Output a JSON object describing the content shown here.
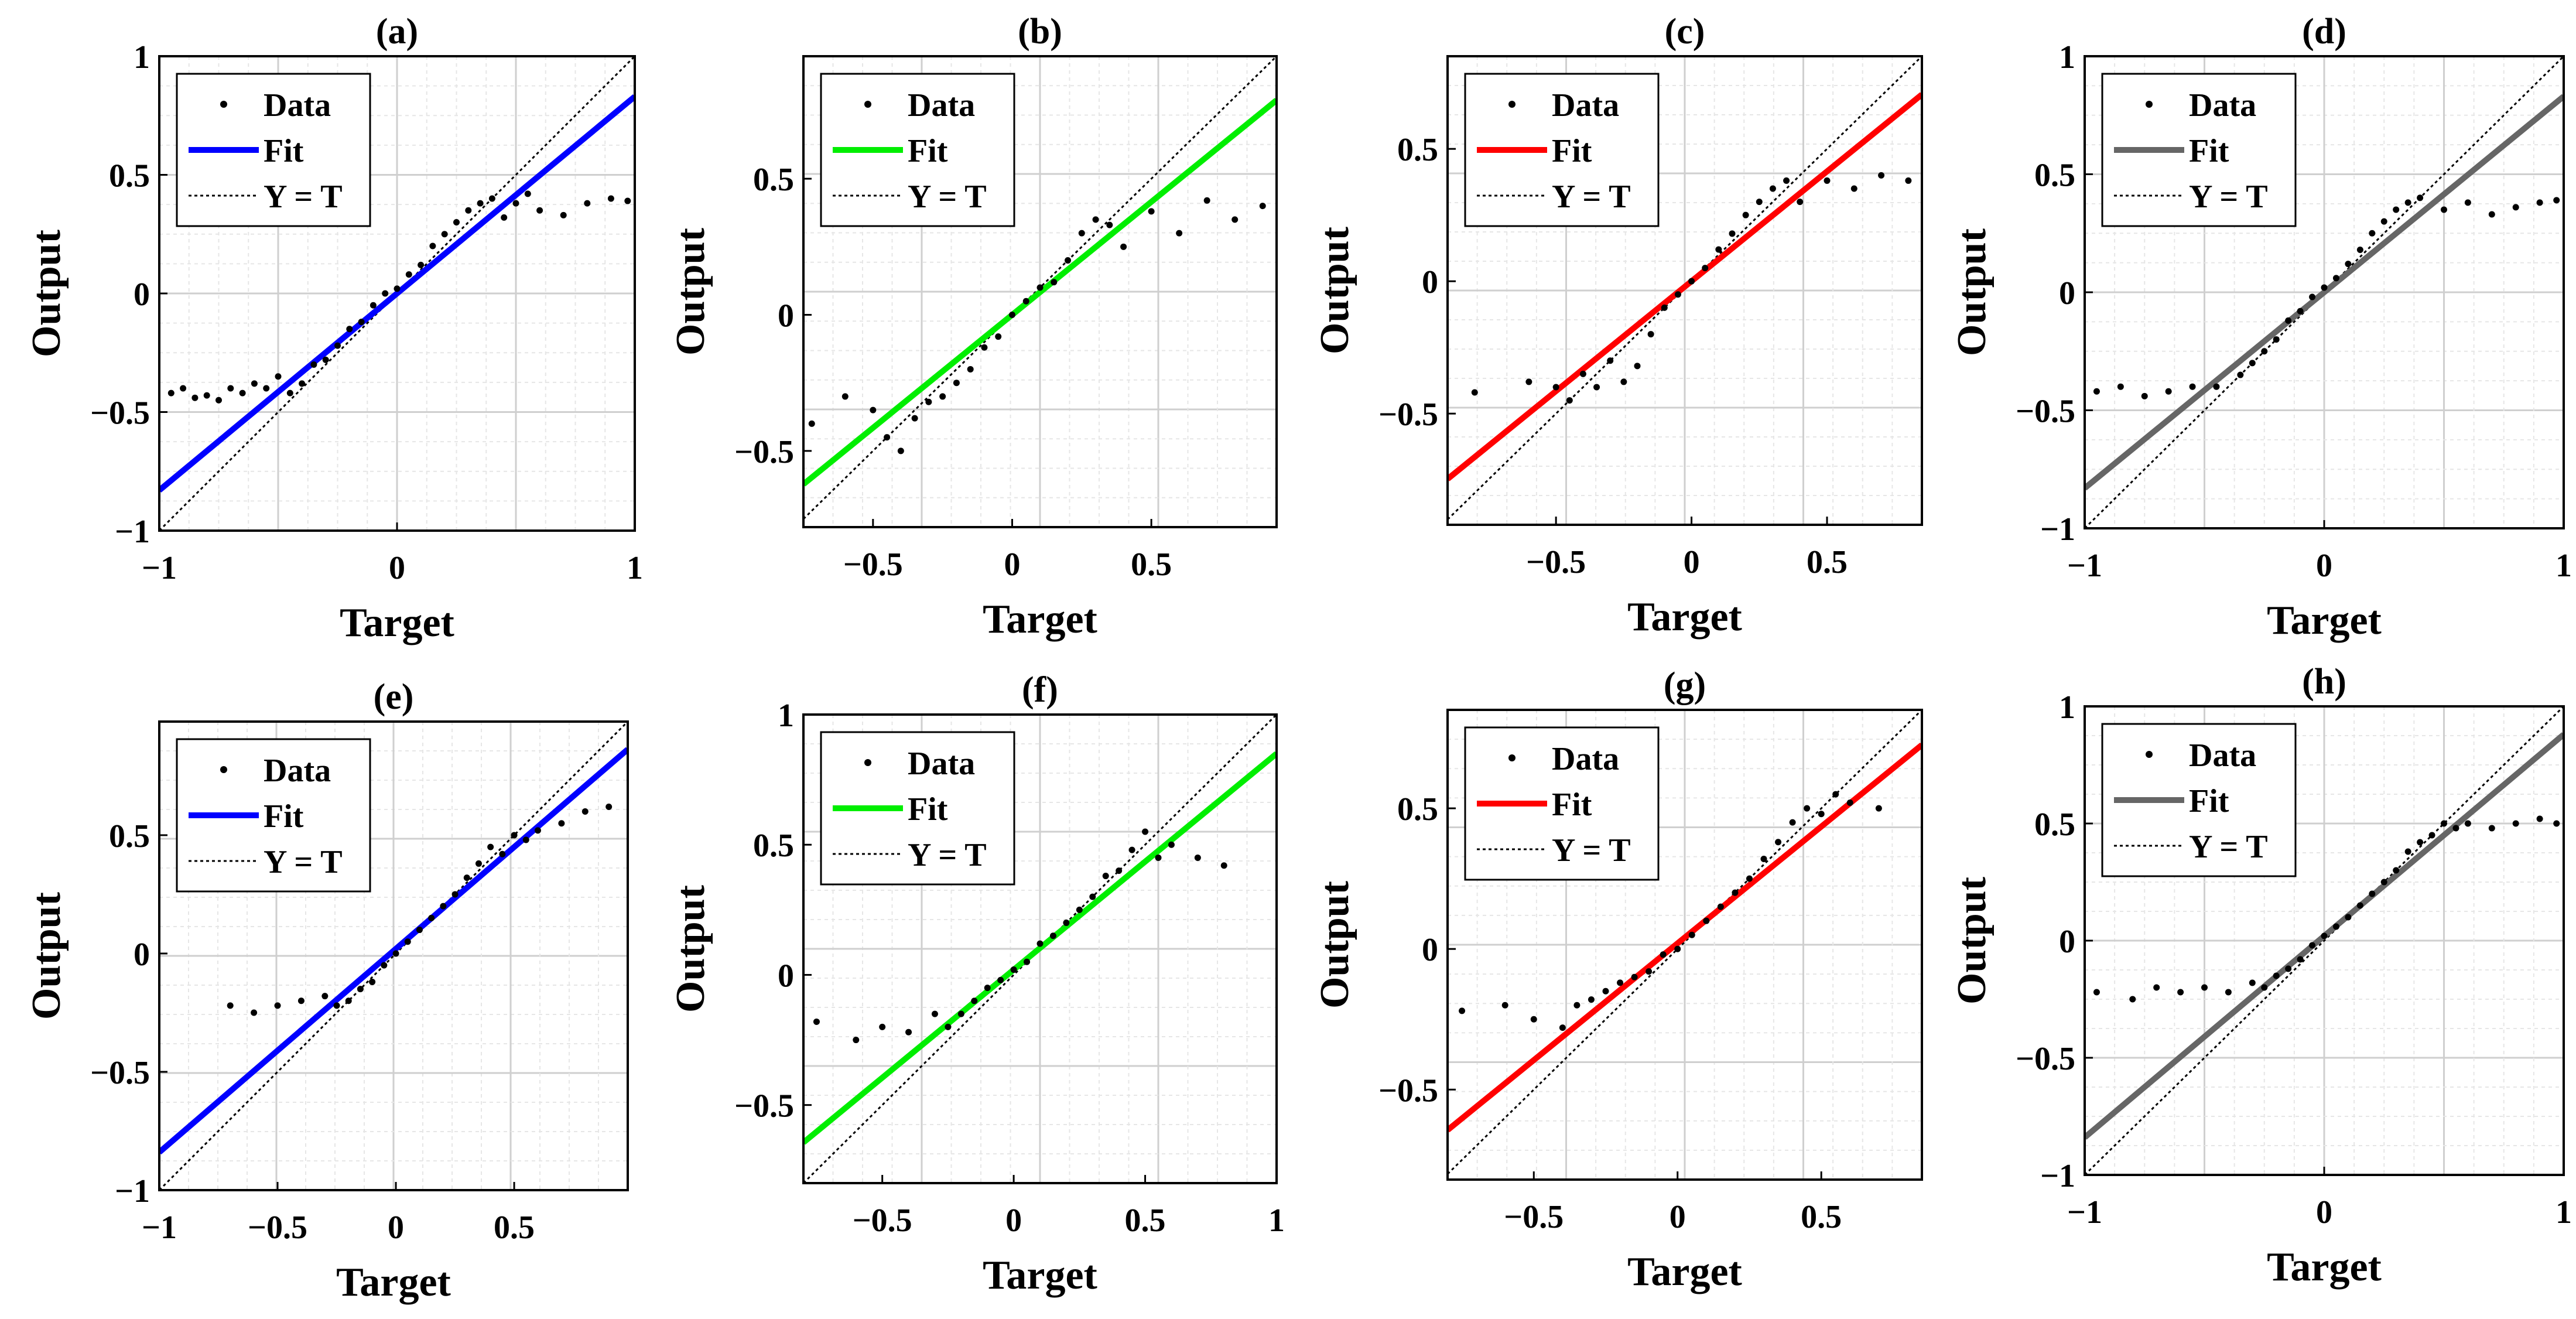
{
  "figure": {
    "xlabel": "Target",
    "ylabel": "Output"
  },
  "legend_labels": {
    "data": "Data",
    "fit": "Fit",
    "identity": "Y = T"
  },
  "chart_data": [
    {
      "type": "scatter",
      "title": "(a)",
      "xlabel": "Target",
      "ylabel": "Output",
      "xlim": [
        -1,
        1
      ],
      "ylim": [
        -1,
        1
      ],
      "xticks": [
        -1,
        0,
        1
      ],
      "xtick_labels": [
        "−1",
        "0",
        "1"
      ],
      "yticks": [
        -1,
        -0.5,
        0,
        0.5,
        1
      ],
      "ytick_labels": [
        "−1",
        "−0.5",
        "0",
        "0.5",
        "1"
      ],
      "fit": {
        "slope": 0.83,
        "intercept": 0.0,
        "color": "#0000ff"
      },
      "grid": true,
      "legend": "top-left",
      "points": [
        [
          -0.95,
          -0.42
        ],
        [
          -0.9,
          -0.4
        ],
        [
          -0.85,
          -0.44
        ],
        [
          -0.8,
          -0.43
        ],
        [
          -0.75,
          -0.45
        ],
        [
          -0.7,
          -0.4
        ],
        [
          -0.65,
          -0.42
        ],
        [
          -0.6,
          -0.38
        ],
        [
          -0.55,
          -0.4
        ],
        [
          -0.5,
          -0.35
        ],
        [
          -0.45,
          -0.42
        ],
        [
          -0.4,
          -0.38
        ],
        [
          -0.35,
          -0.3
        ],
        [
          -0.3,
          -0.28
        ],
        [
          -0.25,
          -0.22
        ],
        [
          -0.2,
          -0.15
        ],
        [
          -0.15,
          -0.12
        ],
        [
          -0.1,
          -0.05
        ],
        [
          -0.05,
          0.0
        ],
        [
          0.0,
          0.02
        ],
        [
          0.05,
          0.08
        ],
        [
          0.1,
          0.12
        ],
        [
          0.15,
          0.2
        ],
        [
          0.2,
          0.25
        ],
        [
          0.25,
          0.3
        ],
        [
          0.3,
          0.35
        ],
        [
          0.35,
          0.38
        ],
        [
          0.4,
          0.4
        ],
        [
          0.45,
          0.32
        ],
        [
          0.5,
          0.38
        ],
        [
          0.55,
          0.42
        ],
        [
          0.6,
          0.35
        ],
        [
          0.7,
          0.33
        ],
        [
          0.8,
          0.38
        ],
        [
          0.9,
          0.4
        ],
        [
          0.97,
          0.39
        ]
      ]
    },
    {
      "type": "scatter",
      "title": "(b)",
      "xlabel": "Target",
      "ylabel": "Output",
      "xlim": [
        -0.75,
        0.95
      ],
      "ylim": [
        -0.78,
        0.95
      ],
      "xticks": [
        -0.5,
        0,
        0.5
      ],
      "xtick_labels": [
        "−0.5",
        "0",
        "0.5"
      ],
      "yticks": [
        -0.5,
        0,
        0.5
      ],
      "ytick_labels": [
        "−0.5",
        "0",
        "0.5"
      ],
      "fit": {
        "slope": 0.83,
        "intercept": 0.0,
        "color": "#00ee00"
      },
      "grid": true,
      "legend": "top-left",
      "points": [
        [
          -0.72,
          -0.4
        ],
        [
          -0.6,
          -0.3
        ],
        [
          -0.5,
          -0.35
        ],
        [
          -0.45,
          -0.45
        ],
        [
          -0.4,
          -0.5
        ],
        [
          -0.35,
          -0.38
        ],
        [
          -0.3,
          -0.32
        ],
        [
          -0.25,
          -0.3
        ],
        [
          -0.2,
          -0.25
        ],
        [
          -0.15,
          -0.2
        ],
        [
          -0.1,
          -0.12
        ],
        [
          -0.05,
          -0.08
        ],
        [
          0.0,
          0.0
        ],
        [
          0.05,
          0.05
        ],
        [
          0.1,
          0.1
        ],
        [
          0.15,
          0.12
        ],
        [
          0.2,
          0.2
        ],
        [
          0.25,
          0.3
        ],
        [
          0.3,
          0.35
        ],
        [
          0.35,
          0.33
        ],
        [
          0.4,
          0.25
        ],
        [
          0.5,
          0.38
        ],
        [
          0.6,
          0.3
        ],
        [
          0.7,
          0.42
        ],
        [
          0.8,
          0.35
        ],
        [
          0.9,
          0.4
        ]
      ]
    },
    {
      "type": "scatter",
      "title": "(c)",
      "xlabel": "Target",
      "ylabel": "Output",
      "xlim": [
        -0.9,
        0.85
      ],
      "ylim": [
        -0.92,
        0.85
      ],
      "xticks": [
        -0.5,
        0,
        0.5
      ],
      "xtick_labels": [
        "−0.5",
        "0",
        "0.5"
      ],
      "yticks": [
        -0.5,
        0,
        0.5
      ],
      "ytick_labels": [
        "−0.5",
        "0",
        "0.5"
      ],
      "fit": {
        "slope": 0.83,
        "intercept": 0.0,
        "color": "#ff0000"
      },
      "grid": true,
      "legend": "top-left",
      "points": [
        [
          -0.8,
          -0.42
        ],
        [
          -0.6,
          -0.38
        ],
        [
          -0.5,
          -0.4
        ],
        [
          -0.45,
          -0.45
        ],
        [
          -0.4,
          -0.35
        ],
        [
          -0.35,
          -0.4
        ],
        [
          -0.3,
          -0.3
        ],
        [
          -0.25,
          -0.38
        ],
        [
          -0.2,
          -0.32
        ],
        [
          -0.15,
          -0.2
        ],
        [
          -0.1,
          -0.1
        ],
        [
          -0.05,
          -0.05
        ],
        [
          0.0,
          0.0
        ],
        [
          0.05,
          0.05
        ],
        [
          0.1,
          0.12
        ],
        [
          0.15,
          0.18
        ],
        [
          0.2,
          0.25
        ],
        [
          0.25,
          0.3
        ],
        [
          0.3,
          0.35
        ],
        [
          0.35,
          0.38
        ],
        [
          0.4,
          0.3
        ],
        [
          0.5,
          0.38
        ],
        [
          0.6,
          0.35
        ],
        [
          0.7,
          0.4
        ],
        [
          0.8,
          0.38
        ]
      ]
    },
    {
      "type": "scatter",
      "title": "(d)",
      "xlabel": "Target",
      "ylabel": "Output",
      "xlim": [
        -1,
        1
      ],
      "ylim": [
        -1,
        1
      ],
      "xticks": [
        -1,
        0,
        1
      ],
      "xtick_labels": [
        "−1",
        "0",
        "1"
      ],
      "yticks": [
        -1,
        -0.5,
        0,
        0.5,
        1
      ],
      "ytick_labels": [
        "−1",
        "−0.5",
        "0",
        "0.5",
        "1"
      ],
      "fit": {
        "slope": 0.83,
        "intercept": 0.0,
        "color": "#666666"
      },
      "grid": true,
      "legend": "top-left",
      "points": [
        [
          -0.95,
          -0.42
        ],
        [
          -0.85,
          -0.4
        ],
        [
          -0.75,
          -0.44
        ],
        [
          -0.65,
          -0.42
        ],
        [
          -0.55,
          -0.4
        ],
        [
          -0.45,
          -0.4
        ],
        [
          -0.35,
          -0.35
        ],
        [
          -0.3,
          -0.3
        ],
        [
          -0.25,
          -0.25
        ],
        [
          -0.2,
          -0.2
        ],
        [
          -0.15,
          -0.12
        ],
        [
          -0.1,
          -0.08
        ],
        [
          -0.05,
          -0.02
        ],
        [
          0.0,
          0.02
        ],
        [
          0.05,
          0.06
        ],
        [
          0.1,
          0.12
        ],
        [
          0.15,
          0.18
        ],
        [
          0.2,
          0.25
        ],
        [
          0.25,
          0.3
        ],
        [
          0.3,
          0.35
        ],
        [
          0.35,
          0.38
        ],
        [
          0.4,
          0.4
        ],
        [
          0.5,
          0.35
        ],
        [
          0.6,
          0.38
        ],
        [
          0.7,
          0.33
        ],
        [
          0.8,
          0.36
        ],
        [
          0.9,
          0.38
        ],
        [
          0.97,
          0.39
        ]
      ]
    },
    {
      "type": "scatter",
      "title": "(e)",
      "xlabel": "Target",
      "ylabel": "Output",
      "xlim": [
        -1,
        0.98
      ],
      "ylim": [
        -1,
        0.98
      ],
      "xticks": [
        -1,
        -0.5,
        0,
        0.5
      ],
      "xtick_labels": [
        "−1",
        "−0.5",
        "0",
        "0.5"
      ],
      "yticks": [
        -1,
        -0.5,
        0,
        0.5
      ],
      "ytick_labels": [
        "−1",
        "−0.5",
        "0",
        "0.5"
      ],
      "fit": {
        "slope": 0.86,
        "intercept": 0.02,
        "color": "#0000ff"
      },
      "grid": true,
      "legend": "top-left",
      "points": [
        [
          -0.7,
          -0.22
        ],
        [
          -0.6,
          -0.25
        ],
        [
          -0.5,
          -0.22
        ],
        [
          -0.4,
          -0.2
        ],
        [
          -0.3,
          -0.18
        ],
        [
          -0.25,
          -0.22
        ],
        [
          -0.2,
          -0.2
        ],
        [
          -0.15,
          -0.15
        ],
        [
          -0.1,
          -0.12
        ],
        [
          -0.05,
          -0.05
        ],
        [
          0.0,
          0.0
        ],
        [
          0.05,
          0.05
        ],
        [
          0.1,
          0.1
        ],
        [
          0.15,
          0.15
        ],
        [
          0.2,
          0.2
        ],
        [
          0.25,
          0.25
        ],
        [
          0.3,
          0.32
        ],
        [
          0.35,
          0.38
        ],
        [
          0.4,
          0.45
        ],
        [
          0.45,
          0.42
        ],
        [
          0.5,
          0.5
        ],
        [
          0.55,
          0.48
        ],
        [
          0.6,
          0.52
        ],
        [
          0.7,
          0.55
        ],
        [
          0.8,
          0.6
        ],
        [
          0.9,
          0.62
        ]
      ]
    },
    {
      "type": "scatter",
      "title": "(f)",
      "xlabel": "Target",
      "ylabel": "Output",
      "xlim": [
        -0.8,
        1
      ],
      "ylim": [
        -0.8,
        1
      ],
      "xticks": [
        -0.5,
        0,
        0.5,
        1
      ],
      "xtick_labels": [
        "−0.5",
        "0",
        "0.5",
        "1"
      ],
      "yticks": [
        -0.5,
        0,
        0.5,
        1
      ],
      "ytick_labels": [
        "−0.5",
        "0",
        "0.5",
        "1"
      ],
      "fit": {
        "slope": 0.83,
        "intercept": 0.02,
        "color": "#00ee00"
      },
      "grid": true,
      "legend": "top-left",
      "points": [
        [
          -0.75,
          -0.18
        ],
        [
          -0.6,
          -0.25
        ],
        [
          -0.5,
          -0.2
        ],
        [
          -0.4,
          -0.22
        ],
        [
          -0.3,
          -0.15
        ],
        [
          -0.25,
          -0.2
        ],
        [
          -0.2,
          -0.15
        ],
        [
          -0.15,
          -0.1
        ],
        [
          -0.1,
          -0.05
        ],
        [
          -0.05,
          -0.02
        ],
        [
          0.0,
          0.02
        ],
        [
          0.05,
          0.05
        ],
        [
          0.1,
          0.12
        ],
        [
          0.15,
          0.15
        ],
        [
          0.2,
          0.2
        ],
        [
          0.25,
          0.25
        ],
        [
          0.3,
          0.3
        ],
        [
          0.35,
          0.38
        ],
        [
          0.4,
          0.4
        ],
        [
          0.45,
          0.48
        ],
        [
          0.5,
          0.55
        ],
        [
          0.55,
          0.45
        ],
        [
          0.6,
          0.5
        ],
        [
          0.7,
          0.45
        ],
        [
          0.8,
          0.42
        ]
      ]
    },
    {
      "type": "scatter",
      "title": "(g)",
      "xlabel": "Target",
      "ylabel": "Output",
      "xlim": [
        -0.8,
        0.85
      ],
      "ylim": [
        -0.82,
        0.85
      ],
      "xticks": [
        -0.5,
        0,
        0.5
      ],
      "xtick_labels": [
        "−0.5",
        "0",
        "0.5"
      ],
      "yticks": [
        -0.5,
        0,
        0.5
      ],
      "ytick_labels": [
        "−0.5",
        "0",
        "0.5"
      ],
      "fit": {
        "slope": 0.83,
        "intercept": 0.02,
        "color": "#ff0000"
      },
      "grid": true,
      "legend": "top-left",
      "points": [
        [
          -0.75,
          -0.22
        ],
        [
          -0.6,
          -0.2
        ],
        [
          -0.5,
          -0.25
        ],
        [
          -0.4,
          -0.28
        ],
        [
          -0.35,
          -0.2
        ],
        [
          -0.3,
          -0.18
        ],
        [
          -0.25,
          -0.15
        ],
        [
          -0.2,
          -0.12
        ],
        [
          -0.15,
          -0.1
        ],
        [
          -0.1,
          -0.08
        ],
        [
          -0.05,
          -0.02
        ],
        [
          0.0,
          0.0
        ],
        [
          0.05,
          0.05
        ],
        [
          0.1,
          0.1
        ],
        [
          0.15,
          0.15
        ],
        [
          0.2,
          0.2
        ],
        [
          0.25,
          0.25
        ],
        [
          0.3,
          0.32
        ],
        [
          0.35,
          0.38
        ],
        [
          0.4,
          0.45
        ],
        [
          0.45,
          0.5
        ],
        [
          0.5,
          0.48
        ],
        [
          0.55,
          0.55
        ],
        [
          0.6,
          0.52
        ],
        [
          0.7,
          0.5
        ]
      ]
    },
    {
      "type": "scatter",
      "title": "(h)",
      "xlabel": "Target",
      "ylabel": "Output",
      "xlim": [
        -1,
        1
      ],
      "ylim": [
        -1,
        1
      ],
      "xticks": [
        -1,
        0,
        1
      ],
      "xtick_labels": [
        "−1",
        "0",
        "1"
      ],
      "yticks": [
        -1,
        -0.5,
        0,
        0.5,
        1
      ],
      "ytick_labels": [
        "−1",
        "−0.5",
        "0",
        "0.5",
        "1"
      ],
      "fit": {
        "slope": 0.86,
        "intercept": 0.02,
        "color": "#666666"
      },
      "grid": true,
      "legend": "top-left",
      "points": [
        [
          -0.95,
          -0.22
        ],
        [
          -0.8,
          -0.25
        ],
        [
          -0.7,
          -0.2
        ],
        [
          -0.6,
          -0.22
        ],
        [
          -0.5,
          -0.2
        ],
        [
          -0.4,
          -0.22
        ],
        [
          -0.3,
          -0.18
        ],
        [
          -0.25,
          -0.2
        ],
        [
          -0.2,
          -0.15
        ],
        [
          -0.15,
          -0.12
        ],
        [
          -0.1,
          -0.08
        ],
        [
          -0.05,
          -0.02
        ],
        [
          0.0,
          0.02
        ],
        [
          0.05,
          0.06
        ],
        [
          0.1,
          0.1
        ],
        [
          0.15,
          0.15
        ],
        [
          0.2,
          0.2
        ],
        [
          0.25,
          0.25
        ],
        [
          0.3,
          0.3
        ],
        [
          0.35,
          0.38
        ],
        [
          0.4,
          0.42
        ],
        [
          0.45,
          0.45
        ],
        [
          0.5,
          0.5
        ],
        [
          0.55,
          0.48
        ],
        [
          0.6,
          0.5
        ],
        [
          0.7,
          0.48
        ],
        [
          0.8,
          0.5
        ],
        [
          0.9,
          0.52
        ],
        [
          0.97,
          0.5
        ]
      ]
    }
  ]
}
